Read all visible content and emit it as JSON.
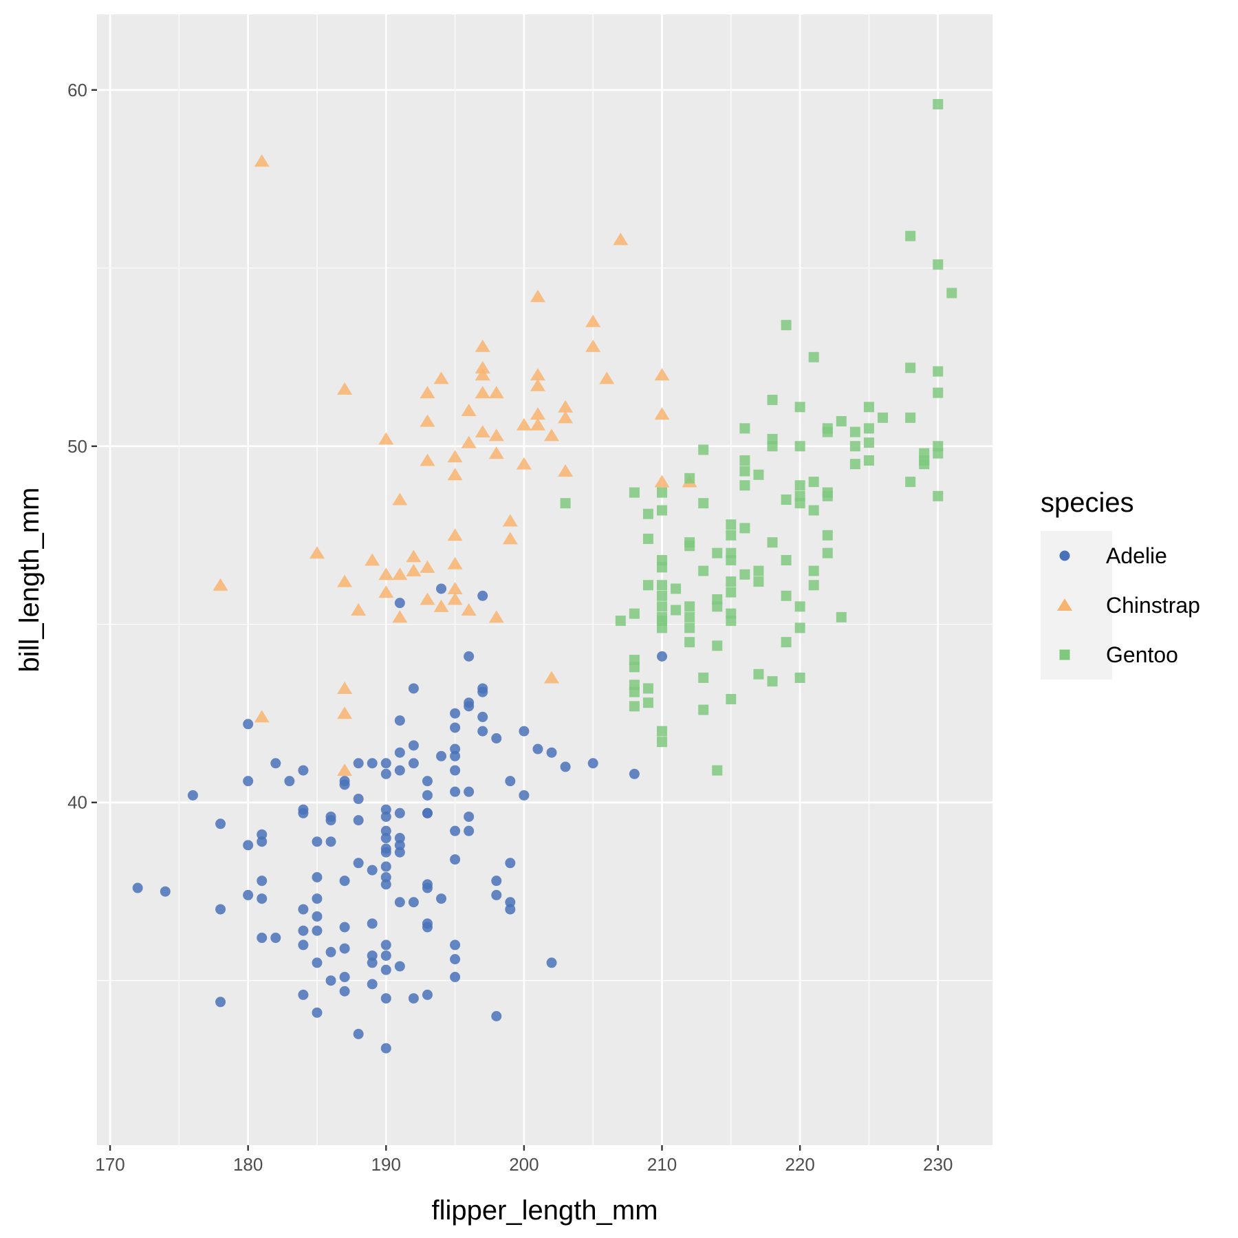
{
  "chart_data": {
    "type": "scatter",
    "title": "",
    "xlabel": "flipper_length_mm",
    "ylabel": "bill_length_mm",
    "xlim": [
      169.05,
      233.95
    ],
    "ylim": [
      30.38,
      62.12
    ],
    "x_ticks": [
      170,
      180,
      190,
      200,
      210,
      220,
      230
    ],
    "y_ticks": [
      40,
      50,
      60
    ],
    "grid": true,
    "legend": {
      "title": "species",
      "position": "right"
    },
    "series": [
      {
        "name": "Adelie",
        "marker": "circle",
        "color": "#4a72b8",
        "points": [
          [
            172,
            37.6
          ],
          [
            174,
            37.5
          ],
          [
            176,
            40.2
          ],
          [
            178,
            39.4
          ],
          [
            178,
            37.0
          ],
          [
            178,
            34.4
          ],
          [
            180,
            42.2
          ],
          [
            180,
            40.6
          ],
          [
            180,
            38.8
          ],
          [
            180,
            37.4
          ],
          [
            181,
            39.1
          ],
          [
            181,
            38.9
          ],
          [
            181,
            37.8
          ],
          [
            181,
            37.3
          ],
          [
            181,
            36.2
          ],
          [
            182,
            41.1
          ],
          [
            182,
            36.2
          ],
          [
            183,
            40.6
          ],
          [
            184,
            40.9
          ],
          [
            184,
            39.8
          ],
          [
            184,
            39.7
          ],
          [
            184,
            37.0
          ],
          [
            184,
            36.4
          ],
          [
            184,
            36.0
          ],
          [
            184,
            34.6
          ],
          [
            185,
            38.9
          ],
          [
            185,
            37.9
          ],
          [
            185,
            37.3
          ],
          [
            185,
            36.8
          ],
          [
            185,
            36.4
          ],
          [
            185,
            35.5
          ],
          [
            185,
            34.1
          ],
          [
            186,
            39.6
          ],
          [
            186,
            39.5
          ],
          [
            186,
            38.9
          ],
          [
            186,
            35.8
          ],
          [
            186,
            35.0
          ],
          [
            187,
            40.6
          ],
          [
            187,
            40.5
          ],
          [
            187,
            37.8
          ],
          [
            187,
            36.5
          ],
          [
            187,
            35.9
          ],
          [
            187,
            35.1
          ],
          [
            187,
            34.7
          ],
          [
            188,
            41.1
          ],
          [
            188,
            40.1
          ],
          [
            188,
            39.5
          ],
          [
            188,
            38.3
          ],
          [
            188,
            33.5
          ],
          [
            189,
            41.1
          ],
          [
            189,
            38.1
          ],
          [
            189,
            36.6
          ],
          [
            189,
            35.7
          ],
          [
            189,
            35.5
          ],
          [
            189,
            34.9
          ],
          [
            190,
            41.1
          ],
          [
            190,
            40.8
          ],
          [
            190,
            39.8
          ],
          [
            190,
            39.6
          ],
          [
            190,
            39.2
          ],
          [
            190,
            39.0
          ],
          [
            190,
            38.7
          ],
          [
            190,
            38.6
          ],
          [
            190,
            38.2
          ],
          [
            190,
            37.9
          ],
          [
            190,
            37.7
          ],
          [
            190,
            36.0
          ],
          [
            190,
            35.7
          ],
          [
            190,
            35.3
          ],
          [
            190,
            34.5
          ],
          [
            190,
            33.1
          ],
          [
            191,
            45.6
          ],
          [
            191,
            42.3
          ],
          [
            191,
            41.4
          ],
          [
            191,
            40.9
          ],
          [
            191,
            39.7
          ],
          [
            191,
            39.0
          ],
          [
            191,
            38.8
          ],
          [
            191,
            38.6
          ],
          [
            191,
            37.2
          ],
          [
            191,
            35.4
          ],
          [
            192,
            43.2
          ],
          [
            192,
            41.6
          ],
          [
            192,
            41.1
          ],
          [
            192,
            37.2
          ],
          [
            192,
            34.5
          ],
          [
            193,
            40.6
          ],
          [
            193,
            40.2
          ],
          [
            193,
            39.7
          ],
          [
            193,
            39.7
          ],
          [
            193,
            37.7
          ],
          [
            193,
            37.6
          ],
          [
            193,
            36.6
          ],
          [
            193,
            36.5
          ],
          [
            193,
            34.6
          ],
          [
            194,
            46.0
          ],
          [
            194,
            41.3
          ],
          [
            194,
            37.3
          ],
          [
            195,
            42.5
          ],
          [
            195,
            42.1
          ],
          [
            195,
            41.5
          ],
          [
            195,
            41.3
          ],
          [
            195,
            40.9
          ],
          [
            195,
            40.3
          ],
          [
            195,
            39.2
          ],
          [
            195,
            38.4
          ],
          [
            195,
            36.0
          ],
          [
            195,
            35.6
          ],
          [
            195,
            35.1
          ],
          [
            196,
            44.1
          ],
          [
            196,
            42.8
          ],
          [
            196,
            42.7
          ],
          [
            196,
            40.3
          ],
          [
            196,
            39.6
          ],
          [
            196,
            39.2
          ],
          [
            197,
            45.8
          ],
          [
            197,
            43.2
          ],
          [
            197,
            43.1
          ],
          [
            197,
            42.4
          ],
          [
            197,
            42.0
          ],
          [
            198,
            41.8
          ],
          [
            198,
            37.8
          ],
          [
            198,
            37.4
          ],
          [
            198,
            34.0
          ],
          [
            199,
            40.6
          ],
          [
            199,
            38.3
          ],
          [
            199,
            37.2
          ],
          [
            199,
            37.0
          ],
          [
            200,
            42.0
          ],
          [
            200,
            40.2
          ],
          [
            201,
            41.5
          ],
          [
            202,
            41.4
          ],
          [
            202,
            35.5
          ],
          [
            203,
            41.0
          ],
          [
            205,
            41.1
          ],
          [
            208,
            40.8
          ],
          [
            210,
            44.1
          ]
        ]
      },
      {
        "name": "Chinstrap",
        "marker": "triangle",
        "color": "#f8b46e",
        "points": [
          [
            178,
            46.1
          ],
          [
            181,
            58.0
          ],
          [
            181,
            42.4
          ],
          [
            185,
            47.0
          ],
          [
            187,
            51.6
          ],
          [
            187,
            46.2
          ],
          [
            187,
            43.2
          ],
          [
            187,
            42.5
          ],
          [
            187,
            40.9
          ],
          [
            188,
            45.4
          ],
          [
            189,
            46.8
          ],
          [
            190,
            50.2
          ],
          [
            190,
            46.4
          ],
          [
            190,
            45.9
          ],
          [
            191,
            48.5
          ],
          [
            191,
            46.4
          ],
          [
            191,
            45.2
          ],
          [
            192,
            46.9
          ],
          [
            192,
            46.5
          ],
          [
            193,
            51.5
          ],
          [
            193,
            50.7
          ],
          [
            193,
            49.6
          ],
          [
            193,
            46.6
          ],
          [
            193,
            45.7
          ],
          [
            194,
            51.9
          ],
          [
            194,
            45.5
          ],
          [
            195,
            49.7
          ],
          [
            195,
            49.2
          ],
          [
            195,
            47.5
          ],
          [
            195,
            46.7
          ],
          [
            195,
            46.0
          ],
          [
            195,
            45.7
          ],
          [
            196,
            51.0
          ],
          [
            196,
            50.1
          ],
          [
            196,
            45.4
          ],
          [
            197,
            52.8
          ],
          [
            197,
            52.2
          ],
          [
            197,
            52.0
          ],
          [
            197,
            51.5
          ],
          [
            197,
            50.4
          ],
          [
            198,
            51.5
          ],
          [
            198,
            50.3
          ],
          [
            198,
            49.8
          ],
          [
            198,
            45.2
          ],
          [
            199,
            47.9
          ],
          [
            199,
            47.4
          ],
          [
            200,
            50.6
          ],
          [
            200,
            49.5
          ],
          [
            201,
            54.2
          ],
          [
            201,
            52.0
          ],
          [
            201,
            51.7
          ],
          [
            201,
            50.9
          ],
          [
            201,
            50.6
          ],
          [
            202,
            50.3
          ],
          [
            202,
            43.5
          ],
          [
            203,
            51.1
          ],
          [
            203,
            50.8
          ],
          [
            203,
            49.3
          ],
          [
            205,
            53.5
          ],
          [
            205,
            52.8
          ],
          [
            206,
            51.9
          ],
          [
            207,
            55.8
          ],
          [
            210,
            52.0
          ],
          [
            210,
            50.9
          ],
          [
            210,
            49.0
          ],
          [
            212,
            49.0
          ]
        ]
      },
      {
        "name": "Gentoo",
        "marker": "square",
        "color": "#7fc97f",
        "points": [
          [
            203,
            48.4
          ],
          [
            207,
            45.1
          ],
          [
            208,
            48.7
          ],
          [
            208,
            45.3
          ],
          [
            208,
            44.0
          ],
          [
            208,
            43.8
          ],
          [
            208,
            43.3
          ],
          [
            208,
            43.1
          ],
          [
            208,
            42.7
          ],
          [
            209,
            48.1
          ],
          [
            209,
            47.4
          ],
          [
            209,
            46.1
          ],
          [
            209,
            43.2
          ],
          [
            209,
            42.8
          ],
          [
            210,
            48.7
          ],
          [
            210,
            48.2
          ],
          [
            210,
            46.8
          ],
          [
            210,
            46.6
          ],
          [
            210,
            46.1
          ],
          [
            210,
            45.8
          ],
          [
            210,
            45.5
          ],
          [
            210,
            45.2
          ],
          [
            210,
            45.1
          ],
          [
            210,
            44.9
          ],
          [
            210,
            42.0
          ],
          [
            210,
            41.7
          ],
          [
            211,
            46.0
          ],
          [
            211,
            45.4
          ],
          [
            212,
            49.1
          ],
          [
            212,
            47.3
          ],
          [
            212,
            47.2
          ],
          [
            212,
            45.5
          ],
          [
            212,
            45.2
          ],
          [
            212,
            44.9
          ],
          [
            212,
            44.5
          ],
          [
            213,
            49.9
          ],
          [
            213,
            48.4
          ],
          [
            213,
            46.5
          ],
          [
            213,
            43.5
          ],
          [
            213,
            42.6
          ],
          [
            214,
            47.0
          ],
          [
            214,
            45.7
          ],
          [
            214,
            45.5
          ],
          [
            214,
            44.4
          ],
          [
            214,
            40.9
          ],
          [
            215,
            47.8
          ],
          [
            215,
            47.5
          ],
          [
            215,
            47.0
          ],
          [
            215,
            46.8
          ],
          [
            215,
            46.2
          ],
          [
            215,
            45.9
          ],
          [
            215,
            45.3
          ],
          [
            215,
            45.1
          ],
          [
            215,
            42.9
          ],
          [
            216,
            50.5
          ],
          [
            216,
            49.6
          ],
          [
            216,
            49.3
          ],
          [
            216,
            48.9
          ],
          [
            216,
            47.7
          ],
          [
            216,
            46.4
          ],
          [
            217,
            49.2
          ],
          [
            217,
            46.5
          ],
          [
            217,
            46.2
          ],
          [
            217,
            43.6
          ],
          [
            218,
            51.3
          ],
          [
            218,
            50.2
          ],
          [
            218,
            50.0
          ],
          [
            218,
            47.3
          ],
          [
            218,
            43.4
          ],
          [
            219,
            53.4
          ],
          [
            219,
            48.5
          ],
          [
            219,
            46.8
          ],
          [
            219,
            45.8
          ],
          [
            219,
            44.5
          ],
          [
            220,
            51.1
          ],
          [
            220,
            50.0
          ],
          [
            220,
            48.9
          ],
          [
            220,
            48.6
          ],
          [
            220,
            48.4
          ],
          [
            220,
            45.5
          ],
          [
            220,
            44.9
          ],
          [
            220,
            43.5
          ],
          [
            221,
            52.5
          ],
          [
            221,
            49.0
          ],
          [
            221,
            48.2
          ],
          [
            221,
            46.5
          ],
          [
            221,
            46.1
          ],
          [
            222,
            50.5
          ],
          [
            222,
            50.4
          ],
          [
            222,
            48.7
          ],
          [
            222,
            48.6
          ],
          [
            222,
            47.5
          ],
          [
            222,
            47.0
          ],
          [
            223,
            50.7
          ],
          [
            223,
            45.2
          ],
          [
            224,
            50.4
          ],
          [
            224,
            50.0
          ],
          [
            224,
            49.5
          ],
          [
            225,
            51.1
          ],
          [
            225,
            50.5
          ],
          [
            225,
            50.1
          ],
          [
            225,
            49.6
          ],
          [
            226,
            50.8
          ],
          [
            228,
            55.9
          ],
          [
            228,
            52.2
          ],
          [
            228,
            50.8
          ],
          [
            228,
            49.0
          ],
          [
            229,
            49.8
          ],
          [
            229,
            49.6
          ],
          [
            229,
            49.5
          ],
          [
            230,
            59.6
          ],
          [
            230,
            55.1
          ],
          [
            230,
            52.1
          ],
          [
            230,
            51.5
          ],
          [
            230,
            50.0
          ],
          [
            230,
            49.8
          ],
          [
            230,
            48.6
          ],
          [
            231,
            54.3
          ]
        ]
      }
    ]
  }
}
